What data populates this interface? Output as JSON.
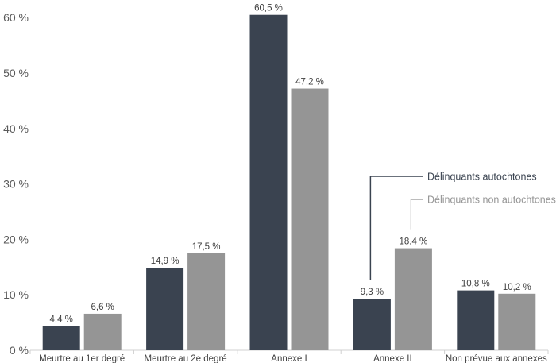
{
  "chart_data": {
    "type": "bar",
    "categories": [
      "Meurtre au 1er degré",
      "Meurtre au 2e degré",
      "Annexe I",
      "Annexe II",
      "Non prévue aux annexes"
    ],
    "series": [
      {
        "name": "Délinquants autochtones",
        "values": [
          4.4,
          14.9,
          60.5,
          9.3,
          10.8
        ],
        "labels": [
          "4,4 %",
          "14,9 %",
          "60,5 %",
          "9,3 %",
          "10,8 %"
        ],
        "color": "#3a4350"
      },
      {
        "name": "Délinquants non autochtones",
        "values": [
          6.6,
          17.5,
          47.2,
          18.4,
          10.2
        ],
        "labels": [
          "6,6 %",
          "17,5 %",
          "47,2 %",
          "18,4 %",
          "10,2 %"
        ],
        "color": "#959595"
      }
    ],
    "yticks": [
      0,
      10,
      20,
      30,
      40,
      50,
      60
    ],
    "ytick_labels": [
      "0 %",
      "10 %",
      "20 %",
      "30 %",
      "40 %",
      "50 %",
      "60 %"
    ],
    "ylim": [
      0,
      62.5
    ],
    "grid": false,
    "legend": "callouts",
    "callout_category": "Annexe II"
  }
}
